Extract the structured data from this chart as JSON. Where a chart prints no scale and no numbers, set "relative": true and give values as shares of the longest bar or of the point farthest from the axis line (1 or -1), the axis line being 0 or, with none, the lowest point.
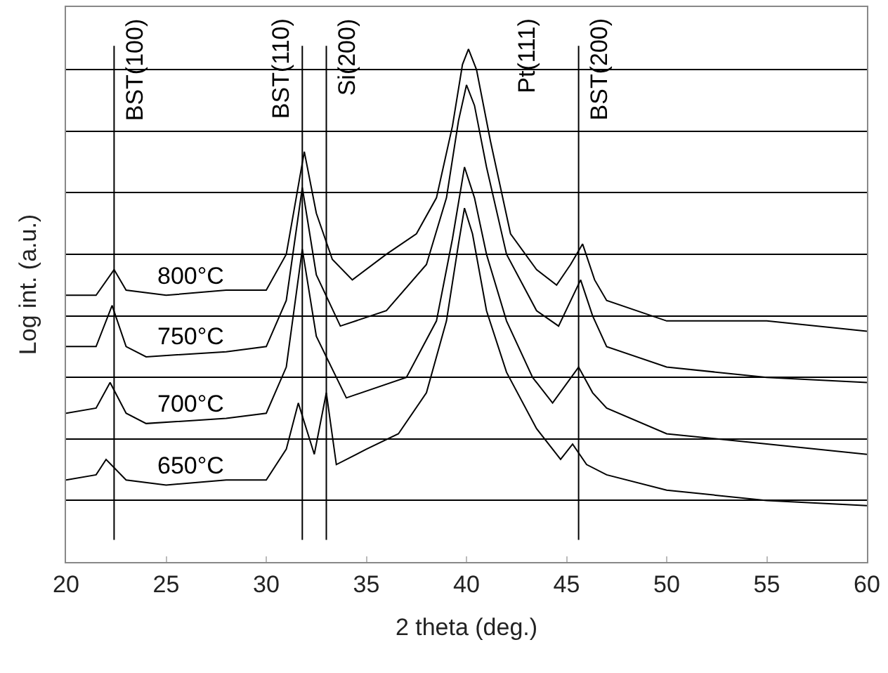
{
  "chart_data": {
    "type": "line",
    "relative": true,
    "xlabel": "2 theta (deg.)",
    "ylabel": "Log int. (a.u.)",
    "xlim": [
      20,
      60
    ],
    "xticks": [
      20,
      25,
      30,
      35,
      40,
      45,
      50,
      55,
      60
    ],
    "grid": "y",
    "marker": "none",
    "line_style": "solid",
    "series": [
      {
        "name": "800°C",
        "color": "#000000",
        "x": [
          20,
          21.5,
          22.4,
          23,
          25,
          28,
          30,
          31,
          31.9,
          32.5,
          33.3,
          34.3,
          36,
          37.5,
          38.5,
          39.3,
          39.8,
          40.1,
          40.5,
          41.2,
          42.2,
          43.5,
          44.5,
          45.2,
          45.8,
          46.4,
          47,
          50,
          55,
          60
        ],
        "values": [
          0.52,
          0.52,
          0.57,
          0.53,
          0.52,
          0.53,
          0.53,
          0.6,
          0.8,
          0.68,
          0.59,
          0.55,
          0.6,
          0.64,
          0.71,
          0.85,
          0.97,
          1,
          0.96,
          0.82,
          0.64,
          0.57,
          0.54,
          0.58,
          0.62,
          0.55,
          0.51,
          0.47,
          0.47,
          0.45
        ]
      },
      {
        "name": "750°C",
        "color": "#000000",
        "x": [
          20,
          21.5,
          22.3,
          23,
          24,
          28,
          30,
          31,
          31.8,
          32.5,
          33.7,
          36,
          38,
          39,
          39.6,
          40.0,
          40.4,
          41,
          42,
          43.5,
          44.6,
          45.7,
          46.3,
          47,
          50,
          55,
          60
        ],
        "values": [
          0.42,
          0.42,
          0.5,
          0.42,
          0.4,
          0.41,
          0.42,
          0.51,
          0.73,
          0.56,
          0.46,
          0.49,
          0.58,
          0.71,
          0.86,
          0.93,
          0.89,
          0.77,
          0.6,
          0.49,
          0.46,
          0.55,
          0.48,
          0.42,
          0.38,
          0.36,
          0.35
        ]
      },
      {
        "name": "700°C",
        "color": "#000000",
        "x": [
          20,
          21.5,
          22.2,
          23,
          24,
          28,
          30,
          31,
          31.8,
          32.5,
          34,
          37,
          38.5,
          39.3,
          39.9,
          40.4,
          41,
          42,
          43.3,
          44.3,
          45.6,
          46.3,
          47,
          50,
          55,
          60
        ],
        "values": [
          0.29,
          0.3,
          0.35,
          0.29,
          0.27,
          0.28,
          0.29,
          0.38,
          0.61,
          0.44,
          0.32,
          0.36,
          0.47,
          0.63,
          0.77,
          0.71,
          0.6,
          0.47,
          0.36,
          0.31,
          0.38,
          0.33,
          0.3,
          0.25,
          0.23,
          0.21
        ]
      },
      {
        "name": "650°C",
        "color": "#000000",
        "x": [
          20,
          21.5,
          22.0,
          23,
          25,
          28,
          30,
          31,
          31.6,
          32.4,
          33.0,
          33.5,
          35,
          36.6,
          38,
          39,
          39.6,
          39.9,
          40.3,
          41,
          42,
          43.5,
          44.7,
          45.3,
          46,
          47,
          50,
          55,
          60
        ],
        "values": [
          0.16,
          0.17,
          0.2,
          0.16,
          0.15,
          0.16,
          0.16,
          0.22,
          0.31,
          0.21,
          0.33,
          0.19,
          0.22,
          0.25,
          0.33,
          0.47,
          0.62,
          0.69,
          0.64,
          0.49,
          0.37,
          0.26,
          0.2,
          0.23,
          0.19,
          0.17,
          0.14,
          0.12,
          0.11
        ]
      }
    ],
    "ref_lines": [
      {
        "axis": "x",
        "value": 22.4,
        "label": "BST(100)",
        "color": "#000000"
      },
      {
        "axis": "x",
        "value": 31.8,
        "label": "BST(110)",
        "color": "#000000"
      },
      {
        "axis": "x",
        "value": 33.0,
        "label": "Si(200)",
        "color": "#000000"
      },
      {
        "axis": "x",
        "value": 45.6,
        "label": "BST(200)",
        "color": "#000000"
      }
    ],
    "annotations": [
      "Pt(111)"
    ]
  }
}
